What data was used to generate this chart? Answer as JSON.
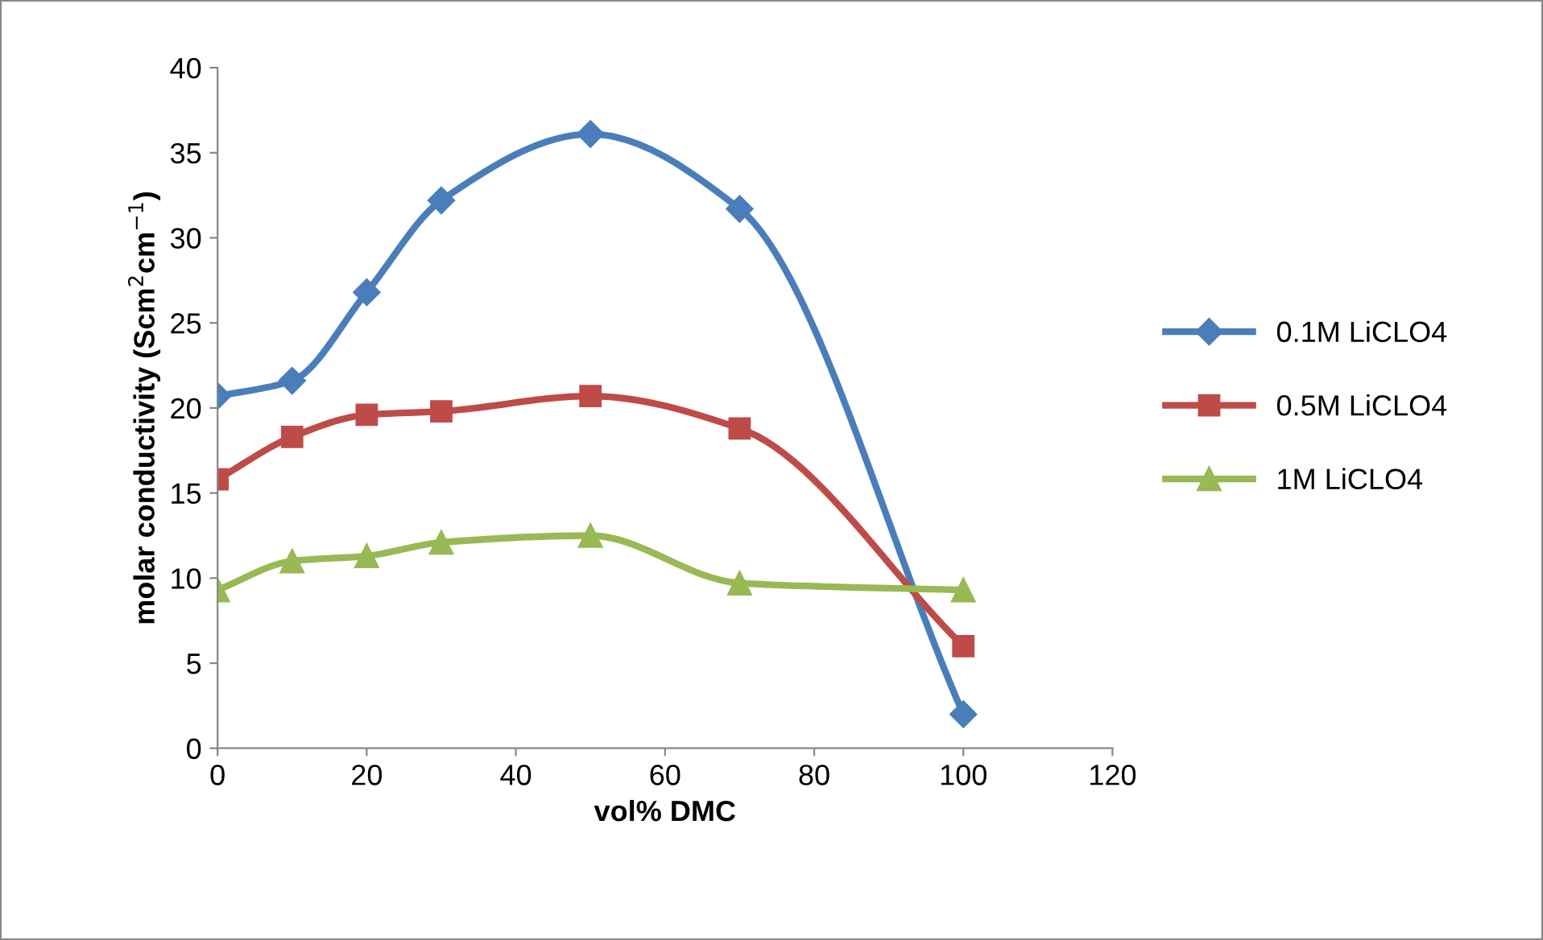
{
  "chart_data": {
    "type": "line",
    "xlabel": "vol% DMC",
    "ylabel": "molar conductivity (Scm$^{2}$cm$^{−1}$)",
    "x": [
      0,
      10,
      20,
      30,
      50,
      70,
      100
    ],
    "series": [
      {
        "name": "0.1M LiCLO4",
        "color": "#4a7ebb",
        "marker": "diamond",
        "values": [
          20.7,
          21.6,
          26.8,
          32.2,
          36.1,
          31.7,
          2.0
        ]
      },
      {
        "name": "0.5M LiCLO4",
        "color": "#be4b48",
        "marker": "square",
        "values": [
          15.8,
          18.3,
          19.6,
          19.8,
          20.7,
          18.8,
          6.0
        ]
      },
      {
        "name": "1M LiCLO4",
        "color": "#98b954",
        "marker": "triangle",
        "values": [
          9.3,
          11.0,
          11.3,
          12.1,
          12.5,
          9.7,
          9.3
        ]
      }
    ],
    "xlim": [
      0,
      120
    ],
    "xticks": [
      0,
      20,
      40,
      60,
      80,
      100,
      120
    ],
    "ylim": [
      0,
      40
    ],
    "yticks": [
      0,
      5,
      10,
      15,
      20,
      25,
      30,
      35,
      40
    ],
    "grid": false,
    "legend": "right",
    "line_style": "solid"
  }
}
